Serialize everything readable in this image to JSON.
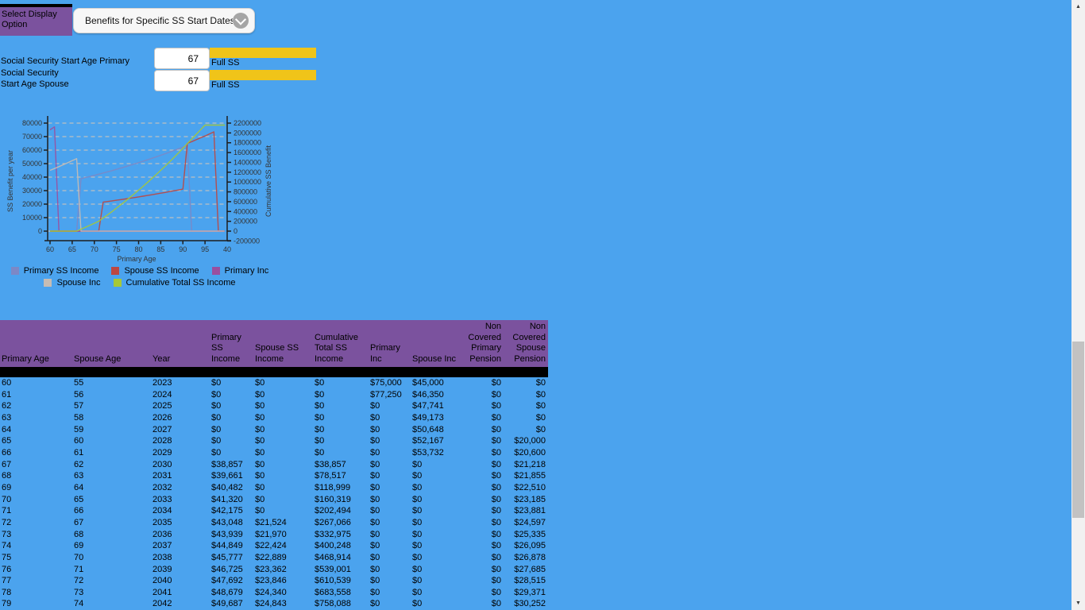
{
  "page": {
    "background": "#4BA3EE",
    "accent_purple": "#7B529E",
    "accent_yellow": "#F0C419"
  },
  "display_option": {
    "label_lines": [
      "Select Display",
      "Option"
    ],
    "selected": "Benefits for Specific SS Start Dates"
  },
  "ss_inputs": [
    {
      "label_lines": [
        "Social Security Start Age Primary"
      ],
      "value": "67",
      "status": "Full SS"
    },
    {
      "label_lines": [
        "Social Security",
        "Start Age Spouse"
      ],
      "value": "67",
      "status": "Full SS"
    }
  ],
  "chart_data": {
    "type": "line",
    "xlabel": "Primary Age",
    "ylabel_left": "SS Benefit per year",
    "ylabel_right": "Cumulative SS Benefit",
    "xlim": [
      60,
      100
    ],
    "x_ticks": [
      60,
      65,
      70,
      75,
      80,
      85,
      90,
      95
    ],
    "x_axis_end_label": "40",
    "ylim_left": [
      0,
      80000
    ],
    "y_left_ticks": [
      0,
      10000,
      20000,
      30000,
      40000,
      50000,
      60000,
      70000,
      80000
    ],
    "ylim_right": [
      -200000,
      2200000
    ],
    "y_right_ticks": [
      -200000,
      0,
      200000,
      400000,
      600000,
      800000,
      1000000,
      1200000,
      1400000,
      1600000,
      1800000,
      2000000,
      2200000
    ],
    "grid": true,
    "grid_color": "#D8C7B6",
    "axis_color": "#1E1E1E",
    "tick_text_color": "#333333",
    "legend_rows": [
      [
        0,
        1,
        2
      ],
      [
        3,
        4
      ]
    ],
    "series": [
      {
        "name": "Primary SS Income",
        "axis": "left",
        "color": "#7C88C6",
        "points": [
          [
            60,
            0
          ],
          [
            66,
            0
          ],
          [
            67,
            38857
          ],
          [
            68,
            39661
          ],
          [
            69,
            40482
          ],
          [
            70,
            41320
          ],
          [
            71,
            42175
          ],
          [
            72,
            43048
          ],
          [
            73,
            43939
          ],
          [
            74,
            44849
          ],
          [
            75,
            45777
          ],
          [
            76,
            46725
          ],
          [
            77,
            47692
          ],
          [
            78,
            48679
          ],
          [
            79,
            49687
          ],
          [
            80,
            50716
          ],
          [
            81,
            51766
          ],
          [
            82,
            52838
          ],
          [
            83,
            53932
          ],
          [
            84,
            55049
          ],
          [
            85,
            56189
          ],
          [
            86,
            57352
          ],
          [
            87,
            58540
          ],
          [
            88,
            59752
          ],
          [
            89,
            60989
          ],
          [
            90,
            62252
          ],
          [
            91,
            63538
          ],
          [
            92,
            0
          ],
          [
            99.4,
            0
          ]
        ]
      },
      {
        "name": "Spouse SS Income",
        "axis": "left",
        "color": "#BC4742",
        "points": [
          [
            60,
            0
          ],
          [
            71,
            0
          ],
          [
            72,
            21524
          ],
          [
            73,
            21970
          ],
          [
            74,
            22424
          ],
          [
            75,
            22889
          ],
          [
            76,
            23362
          ],
          [
            77,
            23846
          ],
          [
            78,
            24340
          ],
          [
            79,
            24843
          ],
          [
            80,
            25357
          ],
          [
            81,
            25882
          ],
          [
            82,
            26418
          ],
          [
            83,
            26965
          ],
          [
            84,
            27523
          ],
          [
            85,
            28093
          ],
          [
            86,
            28675
          ],
          [
            87,
            29269
          ],
          [
            88,
            29875
          ],
          [
            89,
            30494
          ],
          [
            90,
            31125
          ],
          [
            91,
            65000
          ],
          [
            92,
            66300
          ],
          [
            93,
            67700
          ],
          [
            94,
            69100
          ],
          [
            95,
            70500
          ],
          [
            96,
            72000
          ],
          [
            97,
            73500
          ],
          [
            98,
            0
          ],
          [
            99.4,
            0
          ]
        ]
      },
      {
        "name": "Primary Inc",
        "axis": "left",
        "color": "#9A4FA0",
        "points": [
          [
            60,
            75000
          ],
          [
            61,
            77250
          ],
          [
            62,
            0
          ],
          [
            99.4,
            0
          ]
        ]
      },
      {
        "name": "Spouse Inc",
        "axis": "left",
        "color": "#C6BCB4",
        "points": [
          [
            60,
            45000
          ],
          [
            61,
            46350
          ],
          [
            62,
            47741
          ],
          [
            63,
            49173
          ],
          [
            64,
            50648
          ],
          [
            65,
            52167
          ],
          [
            66,
            53732
          ],
          [
            67,
            0
          ],
          [
            99.4,
            0
          ]
        ]
      },
      {
        "name": "Cumulative Total SS Income",
        "axis": "right",
        "color": "#A6C837",
        "points": [
          [
            60,
            0
          ],
          [
            66,
            0
          ],
          [
            67,
            38857
          ],
          [
            68,
            78517
          ],
          [
            69,
            118999
          ],
          [
            70,
            160319
          ],
          [
            71,
            202494
          ],
          [
            72,
            267066
          ],
          [
            73,
            332975
          ],
          [
            74,
            400248
          ],
          [
            75,
            468914
          ],
          [
            76,
            539001
          ],
          [
            77,
            610539
          ],
          [
            78,
            683558
          ],
          [
            79,
            758088
          ],
          [
            80,
            834161
          ],
          [
            81,
            911809
          ],
          [
            82,
            991065
          ],
          [
            83,
            1071962
          ],
          [
            84,
            1154534
          ],
          [
            85,
            1238816
          ],
          [
            86,
            1324843
          ],
          [
            87,
            1412652
          ],
          [
            88,
            1502279
          ],
          [
            89,
            1593762
          ],
          [
            90,
            1687139
          ],
          [
            91,
            1782000
          ],
          [
            92,
            1877000
          ],
          [
            93,
            1972000
          ],
          [
            94,
            2066000
          ],
          [
            95,
            2160000
          ],
          [
            99.5,
            2160000
          ]
        ]
      }
    ]
  },
  "table": {
    "headers": [
      {
        "lines": [
          "Primary Age"
        ]
      },
      {
        "lines": [
          "Spouse Age"
        ]
      },
      {
        "lines": [
          "Year"
        ]
      },
      {
        "lines": [
          "Primary SS",
          "Income"
        ]
      },
      {
        "lines": [
          "Spouse SS",
          "Income"
        ]
      },
      {
        "lines": [
          "Cumulative",
          "Total SS",
          "Income"
        ]
      },
      {
        "lines": [
          "Primary Inc"
        ]
      },
      {
        "lines": [
          "Spouse Inc"
        ]
      },
      {
        "lines": [
          "Non",
          "Covered",
          "Primary",
          "Pension"
        ]
      },
      {
        "lines": [
          "Non",
          "Covered",
          "Spouse",
          "Pension"
        ]
      }
    ],
    "rows": [
      [
        "60",
        "55",
        "2023",
        "$0",
        "$0",
        "$0",
        "$75,000",
        "$45,000",
        "$0",
        "$0"
      ],
      [
        "61",
        "56",
        "2024",
        "$0",
        "$0",
        "$0",
        "$77,250",
        "$46,350",
        "$0",
        "$0"
      ],
      [
        "62",
        "57",
        "2025",
        "$0",
        "$0",
        "$0",
        "$0",
        "$47,741",
        "$0",
        "$0"
      ],
      [
        "63",
        "58",
        "2026",
        "$0",
        "$0",
        "$0",
        "$0",
        "$49,173",
        "$0",
        "$0"
      ],
      [
        "64",
        "59",
        "2027",
        "$0",
        "$0",
        "$0",
        "$0",
        "$50,648",
        "$0",
        "$0"
      ],
      [
        "65",
        "60",
        "2028",
        "$0",
        "$0",
        "$0",
        "$0",
        "$52,167",
        "$0",
        "$20,000"
      ],
      [
        "66",
        "61",
        "2029",
        "$0",
        "$0",
        "$0",
        "$0",
        "$53,732",
        "$0",
        "$20,600"
      ],
      [
        "67",
        "62",
        "2030",
        "$38,857",
        "$0",
        "$38,857",
        "$0",
        "$0",
        "$0",
        "$21,218"
      ],
      [
        "68",
        "63",
        "2031",
        "$39,661",
        "$0",
        "$78,517",
        "$0",
        "$0",
        "$0",
        "$21,855"
      ],
      [
        "69",
        "64",
        "2032",
        "$40,482",
        "$0",
        "$118,999",
        "$0",
        "$0",
        "$0",
        "$22,510"
      ],
      [
        "70",
        "65",
        "2033",
        "$41,320",
        "$0",
        "$160,319",
        "$0",
        "$0",
        "$0",
        "$23,185"
      ],
      [
        "71",
        "66",
        "2034",
        "$42,175",
        "$0",
        "$202,494",
        "$0",
        "$0",
        "$0",
        "$23,881"
      ],
      [
        "72",
        "67",
        "2035",
        "$43,048",
        "$21,524",
        "$267,066",
        "$0",
        "$0",
        "$0",
        "$24,597"
      ],
      [
        "73",
        "68",
        "2036",
        "$43,939",
        "$21,970",
        "$332,975",
        "$0",
        "$0",
        "$0",
        "$25,335"
      ],
      [
        "74",
        "69",
        "2037",
        "$44,849",
        "$22,424",
        "$400,248",
        "$0",
        "$0",
        "$0",
        "$26,095"
      ],
      [
        "75",
        "70",
        "2038",
        "$45,777",
        "$22,889",
        "$468,914",
        "$0",
        "$0",
        "$0",
        "$26,878"
      ],
      [
        "76",
        "71",
        "2039",
        "$46,725",
        "$23,362",
        "$539,001",
        "$0",
        "$0",
        "$0",
        "$27,685"
      ],
      [
        "77",
        "72",
        "2040",
        "$47,692",
        "$23,846",
        "$610,539",
        "$0",
        "$0",
        "$0",
        "$28,515"
      ],
      [
        "78",
        "73",
        "2041",
        "$48,679",
        "$24,340",
        "$683,558",
        "$0",
        "$0",
        "$0",
        "$29,371"
      ],
      [
        "79",
        "74",
        "2042",
        "$49,687",
        "$24,843",
        "$758,088",
        "$0",
        "$0",
        "$0",
        "$30,252"
      ]
    ]
  },
  "scrollbar": {
    "up_icon": "▲",
    "down_icon": "▼"
  }
}
